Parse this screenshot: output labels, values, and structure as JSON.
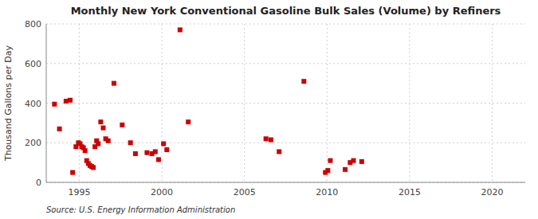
{
  "chart_data": {
    "type": "scatter",
    "title": "Monthly New York Conventional Gasoline Bulk Sales (Volume) by Refiners",
    "y_label": "Thousand Gallons per Day",
    "annotations": [
      "Source: U.S. Energy Information Administration"
    ],
    "color": "#cc0000",
    "marker": "square",
    "grid": true,
    "xlim": [
      1993,
      2022
    ],
    "ylim": [
      0,
      800
    ],
    "xticks": [
      1995,
      2000,
      2005,
      2010,
      2015,
      2020
    ],
    "yticks": [
      0,
      200,
      400,
      600,
      800
    ],
    "x": [
      1993.5,
      1993.8,
      1994.2,
      1994.45,
      1994.6,
      1994.8,
      1994.95,
      1995.05,
      1995.15,
      1995.25,
      1995.35,
      1995.45,
      1995.55,
      1995.65,
      1995.75,
      1995.85,
      1995.95,
      1996.05,
      1996.15,
      1996.3,
      1996.45,
      1996.6,
      1996.75,
      1997.1,
      1997.6,
      1998.1,
      1998.4,
      1999.1,
      1999.4,
      1999.6,
      1999.8,
      2000.1,
      2000.3,
      2001.1,
      2001.6,
      2006.3,
      2006.6,
      2007.1,
      2008.6,
      2009.9,
      2010.05,
      2010.2,
      2011.1,
      2011.4,
      2011.6,
      2012.1
    ],
    "values": [
      395,
      270,
      410,
      415,
      50,
      180,
      200,
      195,
      180,
      175,
      160,
      110,
      95,
      85,
      80,
      75,
      180,
      210,
      195,
      305,
      275,
      220,
      210,
      500,
      290,
      200,
      145,
      150,
      145,
      155,
      115,
      195,
      165,
      770,
      305,
      220,
      215,
      155,
      510,
      50,
      60,
      110,
      65,
      100,
      110,
      105
    ]
  }
}
